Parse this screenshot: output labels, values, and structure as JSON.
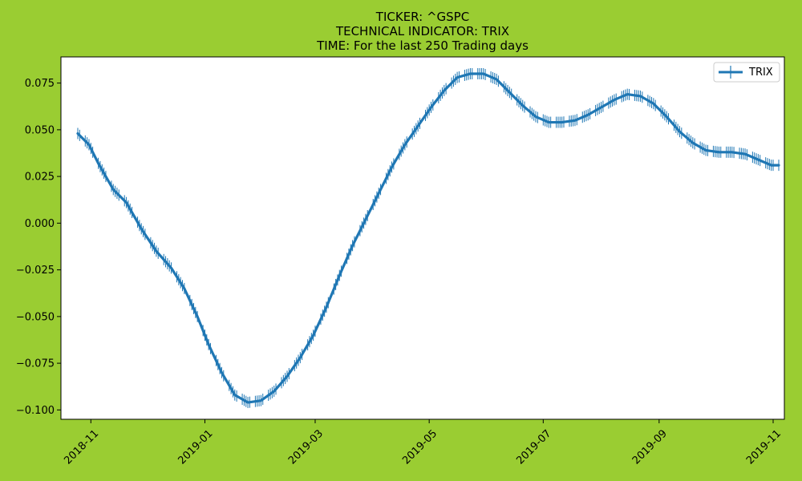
{
  "chart_data": {
    "type": "line",
    "title_lines": [
      "TICKER:  ^GSPC",
      "TECHNICAL INDICATOR:  TRIX",
      "TIME: For the last 250 Trading days"
    ],
    "xlabel": "",
    "ylabel": "",
    "x_axis_type": "date",
    "xlim": [
      "2018-10-16",
      "2019-11-07"
    ],
    "ylim": [
      -0.105,
      0.089
    ],
    "x_ticks": [
      {
        "date": "2018-11-01",
        "label": "2018-11"
      },
      {
        "date": "2019-01-01",
        "label": "2019-01"
      },
      {
        "date": "2019-03-01",
        "label": "2019-03"
      },
      {
        "date": "2019-05-01",
        "label": "2019-05"
      },
      {
        "date": "2019-07-01",
        "label": "2019-07"
      },
      {
        "date": "2019-09-01",
        "label": "2019-09"
      },
      {
        "date": "2019-11-01",
        "label": "2019-11"
      }
    ],
    "y_ticks": [
      {
        "value": 0.075,
        "label": "0.075"
      },
      {
        "value": 0.05,
        "label": "0.050"
      },
      {
        "value": 0.025,
        "label": "0.025"
      },
      {
        "value": 0.0,
        "label": "0.000"
      },
      {
        "value": -0.025,
        "label": "−0.025"
      },
      {
        "value": -0.05,
        "label": "−0.050"
      },
      {
        "value": -0.075,
        "label": "−0.075"
      },
      {
        "value": -0.1,
        "label": "−0.100"
      }
    ],
    "series": [
      {
        "name": "TRIX",
        "color": "#1f77b4",
        "marker": "vertical-line",
        "points": [
          {
            "x": "2018-10-25",
            "y": 0.048
          },
          {
            "x": "2018-10-31",
            "y": 0.042
          },
          {
            "x": "2018-11-05",
            "y": 0.032
          },
          {
            "x": "2018-11-13",
            "y": 0.018
          },
          {
            "x": "2018-11-20",
            "y": 0.011
          },
          {
            "x": "2018-11-28",
            "y": -0.003
          },
          {
            "x": "2018-12-06",
            "y": -0.015
          },
          {
            "x": "2018-12-14",
            "y": -0.024
          },
          {
            "x": "2018-12-21",
            "y": -0.035
          },
          {
            "x": "2018-12-28",
            "y": -0.05
          },
          {
            "x": "2019-01-03",
            "y": -0.065
          },
          {
            "x": "2019-01-10",
            "y": -0.08
          },
          {
            "x": "2019-01-17",
            "y": -0.092
          },
          {
            "x": "2019-01-24",
            "y": -0.096
          },
          {
            "x": "2019-01-31",
            "y": -0.095
          },
          {
            "x": "2019-02-07",
            "y": -0.09
          },
          {
            "x": "2019-02-14",
            "y": -0.082
          },
          {
            "x": "2019-02-21",
            "y": -0.072
          },
          {
            "x": "2019-02-28",
            "y": -0.06
          },
          {
            "x": "2019-03-07",
            "y": -0.045
          },
          {
            "x": "2019-03-14",
            "y": -0.028
          },
          {
            "x": "2019-03-21",
            "y": -0.012
          },
          {
            "x": "2019-03-28",
            "y": 0.002
          },
          {
            "x": "2019-04-04",
            "y": 0.016
          },
          {
            "x": "2019-04-11",
            "y": 0.03
          },
          {
            "x": "2019-04-18",
            "y": 0.042
          },
          {
            "x": "2019-04-25",
            "y": 0.052
          },
          {
            "x": "2019-05-02",
            "y": 0.062
          },
          {
            "x": "2019-05-09",
            "y": 0.071
          },
          {
            "x": "2019-05-16",
            "y": 0.078
          },
          {
            "x": "2019-05-23",
            "y": 0.08
          },
          {
            "x": "2019-05-30",
            "y": 0.08
          },
          {
            "x": "2019-06-06",
            "y": 0.077
          },
          {
            "x": "2019-06-13",
            "y": 0.07
          },
          {
            "x": "2019-06-20",
            "y": 0.063
          },
          {
            "x": "2019-06-27",
            "y": 0.057
          },
          {
            "x": "2019-07-04",
            "y": 0.054
          },
          {
            "x": "2019-07-11",
            "y": 0.054
          },
          {
            "x": "2019-07-18",
            "y": 0.055
          },
          {
            "x": "2019-07-25",
            "y": 0.058
          },
          {
            "x": "2019-08-01",
            "y": 0.062
          },
          {
            "x": "2019-08-08",
            "y": 0.066
          },
          {
            "x": "2019-08-15",
            "y": 0.069
          },
          {
            "x": "2019-08-22",
            "y": 0.068
          },
          {
            "x": "2019-08-29",
            "y": 0.064
          },
          {
            "x": "2019-09-05",
            "y": 0.057
          },
          {
            "x": "2019-09-12",
            "y": 0.049
          },
          {
            "x": "2019-09-19",
            "y": 0.043
          },
          {
            "x": "2019-09-26",
            "y": 0.039
          },
          {
            "x": "2019-10-03",
            "y": 0.038
          },
          {
            "x": "2019-10-10",
            "y": 0.038
          },
          {
            "x": "2019-10-17",
            "y": 0.037
          },
          {
            "x": "2019-10-24",
            "y": 0.034
          },
          {
            "x": "2019-10-31",
            "y": 0.031
          },
          {
            "x": "2019-11-04",
            "y": 0.031
          }
        ]
      }
    ],
    "legend_position": "top-right",
    "grid": false
  }
}
